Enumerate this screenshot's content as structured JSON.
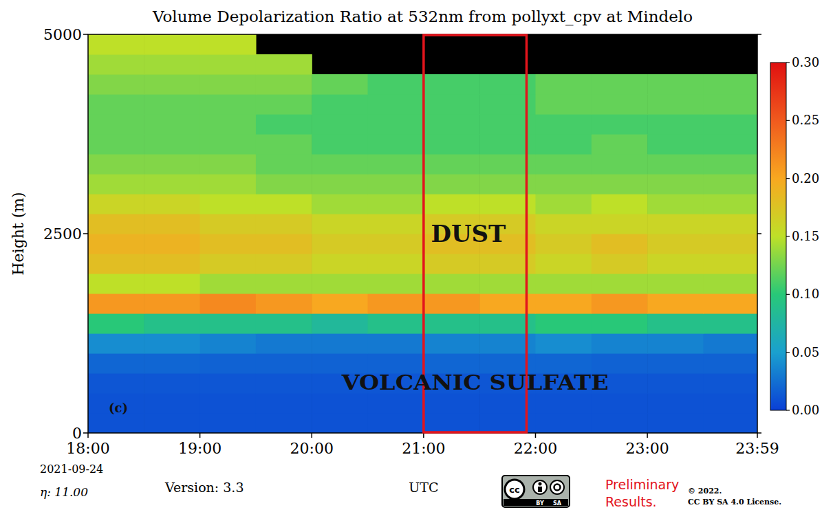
{
  "chart_data": {
    "type": "heatmap",
    "title": "Volume Depolarization Ratio at 532nm from pollyxt_cpv at Mindelo",
    "x_label": "UTC",
    "y_label": "Height (m)",
    "xlim": [
      18,
      23.9833
    ],
    "ylim": [
      0,
      5000
    ],
    "xticks": [
      {
        "value": 18,
        "label": "18:00"
      },
      {
        "value": 19,
        "label": "19:00"
      },
      {
        "value": 20,
        "label": "20:00"
      },
      {
        "value": 21,
        "label": "21:00"
      },
      {
        "value": 22,
        "label": "22:00"
      },
      {
        "value": 23,
        "label": "23:00"
      },
      {
        "value": 23.9833,
        "label": "23:59"
      }
    ],
    "yticks": [
      0,
      2500,
      5000
    ],
    "x_bins": [
      18,
      18.5,
      19,
      19.5,
      20,
      20.5,
      21,
      21.5,
      22,
      22.5,
      23,
      23.5,
      24
    ],
    "y_bins": [
      0,
      250,
      500,
      750,
      1000,
      1250,
      1500,
      1750,
      2000,
      2250,
      2500,
      2750,
      3000,
      3250,
      3500,
      3750,
      4000,
      4250,
      4500,
      4750,
      5000
    ],
    "values": [
      [
        0.01,
        0.01,
        0.01,
        0.01,
        0.01,
        0.01,
        0.01,
        0.01,
        0.01,
        0.01,
        0.01,
        0.01
      ],
      [
        0.01,
        0.01,
        0.01,
        0.01,
        0.01,
        0.01,
        0.01,
        0.01,
        0.01,
        0.01,
        0.01,
        0.01
      ],
      [
        0.012,
        0.012,
        0.012,
        0.012,
        0.012,
        0.012,
        0.012,
        0.012,
        0.012,
        0.012,
        0.012,
        0.012
      ],
      [
        0.02,
        0.02,
        0.018,
        0.018,
        0.018,
        0.018,
        0.02,
        0.02,
        0.02,
        0.018,
        0.018,
        0.018
      ],
      [
        0.04,
        0.04,
        0.035,
        0.03,
        0.03,
        0.03,
        0.035,
        0.035,
        0.04,
        0.035,
        0.035,
        0.03
      ],
      [
        0.1,
        0.09,
        0.09,
        0.09,
        0.08,
        0.09,
        0.09,
        0.09,
        0.1,
        0.1,
        0.09,
        0.09
      ],
      [
        0.21,
        0.21,
        0.22,
        0.21,
        0.2,
        0.21,
        0.21,
        0.2,
        0.2,
        0.21,
        0.2,
        0.2
      ],
      [
        0.15,
        0.15,
        0.14,
        0.14,
        0.14,
        0.14,
        0.14,
        0.14,
        0.14,
        0.14,
        0.14,
        0.14
      ],
      [
        0.18,
        0.18,
        0.17,
        0.17,
        0.16,
        0.16,
        0.17,
        0.17,
        0.16,
        0.17,
        0.16,
        0.16
      ],
      [
        0.19,
        0.19,
        0.18,
        0.18,
        0.17,
        0.17,
        0.18,
        0.18,
        0.17,
        0.18,
        0.17,
        0.17
      ],
      [
        0.18,
        0.18,
        0.17,
        0.17,
        0.16,
        0.16,
        0.17,
        0.17,
        0.16,
        0.16,
        0.16,
        0.16
      ],
      [
        0.16,
        0.16,
        0.15,
        0.15,
        0.14,
        0.14,
        0.15,
        0.15,
        0.14,
        0.15,
        0.14,
        0.14
      ],
      [
        0.14,
        0.14,
        0.14,
        0.13,
        0.13,
        0.13,
        0.13,
        0.13,
        0.13,
        0.13,
        0.13,
        0.13
      ],
      [
        0.13,
        0.13,
        0.13,
        0.12,
        0.12,
        0.12,
        0.12,
        0.12,
        0.12,
        0.12,
        0.12,
        0.12
      ],
      [
        0.12,
        0.12,
        0.12,
        0.12,
        0.11,
        0.11,
        0.11,
        0.11,
        0.11,
        0.12,
        0.11,
        0.11
      ],
      [
        0.12,
        0.12,
        0.12,
        0.11,
        0.11,
        0.11,
        0.11,
        0.11,
        0.11,
        0.11,
        0.11,
        0.11
      ],
      [
        0.12,
        0.12,
        0.12,
        0.12,
        0.11,
        0.11,
        0.11,
        0.11,
        0.12,
        0.12,
        0.12,
        0.12
      ],
      [
        0.13,
        0.13,
        0.13,
        0.13,
        0.12,
        0.11,
        0.11,
        0.11,
        0.12,
        0.12,
        0.12,
        0.12
      ],
      [
        0.14,
        0.14,
        0.14,
        0.14,
        null,
        null,
        null,
        null,
        null,
        null,
        null,
        null
      ],
      [
        0.15,
        0.15,
        0.15,
        null,
        null,
        null,
        null,
        null,
        null,
        null,
        null,
        null
      ]
    ],
    "colorbar": {
      "range": [
        0,
        0.3
      ],
      "ticks": [
        {
          "value": 0,
          "label": "0.00"
        },
        {
          "value": 0.05,
          "label": "0.05"
        },
        {
          "value": 0.1,
          "label": "0.10"
        },
        {
          "value": 0.15,
          "label": "0.15"
        },
        {
          "value": 0.2,
          "label": "0.20"
        },
        {
          "value": 0.25,
          "label": "0.25"
        },
        {
          "value": 0.3,
          "label": "0.30"
        }
      ]
    },
    "highlight": {
      "x": [
        21,
        21.92
      ],
      "color": "#e3141c"
    },
    "annotations": [
      {
        "text": "DUST",
        "x": 21.4,
        "y": 2500
      },
      {
        "text": "VOLCANIC SULFATE",
        "x": 21.46,
        "y": 650
      },
      {
        "text": "(c)",
        "x": 18.27,
        "y": 320
      }
    ],
    "footer": {
      "date": "2021-09-24",
      "eta": "η: 11.00",
      "version": "Version: 3.3",
      "cc_badge": [
        "cc",
        "BY",
        "SA"
      ],
      "status": [
        "Preliminary",
        "Results."
      ],
      "copyright": "© 2022.",
      "license": "CC BY SA 4.0 License."
    }
  }
}
